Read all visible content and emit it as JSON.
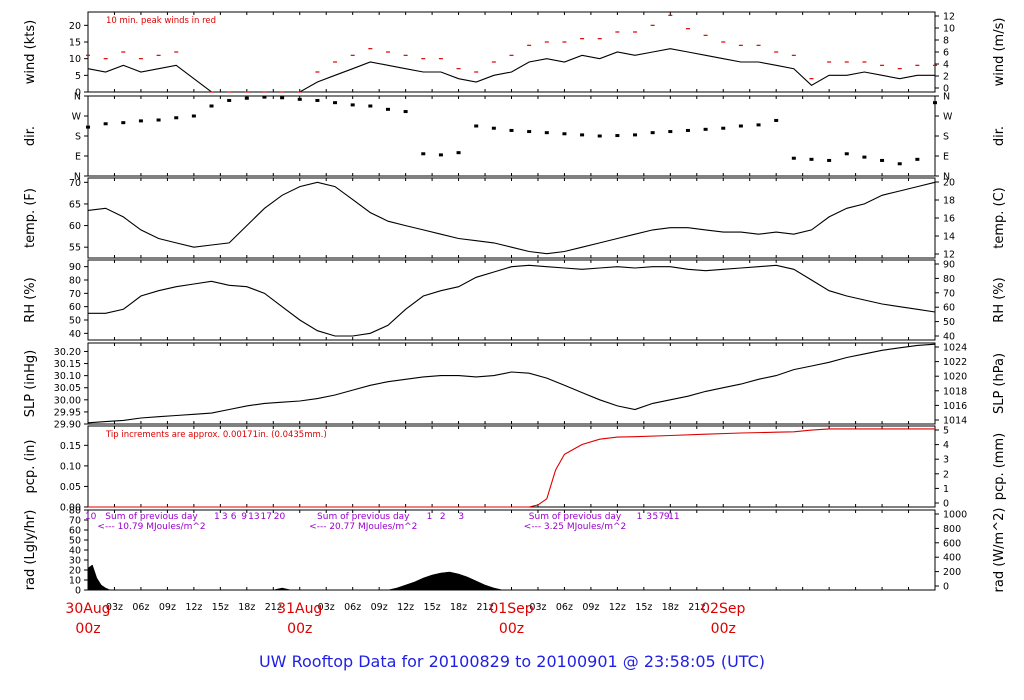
{
  "title": "UW Rooftop Data for 20100829  to  20100901 @ 23:58:05  (UTC)",
  "colors": {
    "data": "#000000",
    "accent": "#dd0000",
    "purple": "#9900cc",
    "title": "#1f1fe6",
    "frame": "#000000"
  },
  "x_axis": {
    "hour_ticks": [
      "03z",
      "06z",
      "09z",
      "12z",
      "15z",
      "18z",
      "21z",
      "00z",
      "03z",
      "06z",
      "09z",
      "12z",
      "15z",
      "18z",
      "21z",
      "00z",
      "03z",
      "06z",
      "09z",
      "12z",
      "15z",
      "18z",
      "21z",
      "00z"
    ],
    "day_labels": [
      {
        "date": "30Aug",
        "time": "00z"
      },
      {
        "date": "31Aug",
        "time": "00z"
      },
      {
        "date": "01Sep",
        "time": "00z"
      },
      {
        "date": "02Sep",
        "time": "00z"
      }
    ]
  },
  "chart_data": [
    {
      "type": "line",
      "ylabel": "wind (kts)",
      "ylabel_right": "wind (m/s)",
      "yticks": [
        "0",
        "5",
        "10",
        "15",
        "20"
      ],
      "yticks_right": [
        "0",
        "2",
        "4",
        "6",
        "8",
        "10",
        "12"
      ],
      "ylim": [
        0,
        24
      ],
      "annotation": "10 min. peak winds in red",
      "series": [
        {
          "role": "sustained",
          "x": [
            0,
            2,
            4,
            6,
            8,
            10,
            14,
            16,
            18,
            20,
            22,
            24,
            26,
            28,
            30,
            32,
            34,
            36,
            38,
            40,
            42,
            44,
            46,
            48,
            50,
            52,
            54,
            56,
            58,
            60,
            62,
            64,
            66,
            68,
            70,
            72,
            74,
            76,
            78,
            80,
            82,
            84,
            86,
            88,
            90,
            92,
            94,
            96
          ],
          "y": [
            7,
            6,
            8,
            6,
            7,
            8,
            0,
            0,
            0,
            0,
            0,
            0,
            3,
            5,
            7,
            9,
            8,
            7,
            6,
            6,
            4,
            3,
            5,
            6,
            9,
            10,
            9,
            11,
            10,
            12,
            11,
            12,
            13,
            12,
            11,
            10,
            9,
            9,
            8,
            7,
            2,
            5,
            5,
            6,
            5,
            4,
            5,
            5
          ]
        },
        {
          "role": "peak",
          "x": [
            0,
            2,
            4,
            6,
            8,
            10,
            14,
            16,
            18,
            20,
            22,
            24,
            26,
            28,
            30,
            32,
            34,
            36,
            38,
            40,
            42,
            44,
            46,
            48,
            50,
            52,
            54,
            56,
            58,
            60,
            62,
            64,
            66,
            68,
            70,
            72,
            74,
            76,
            78,
            80,
            82,
            84,
            86,
            88,
            90,
            92,
            94,
            96
          ],
          "y": [
            11,
            10,
            12,
            10,
            11,
            12,
            0,
            0,
            0,
            0,
            0,
            0,
            6,
            9,
            11,
            13,
            12,
            11,
            10,
            10,
            7,
            6,
            9,
            11,
            14,
            15,
            15,
            16,
            16,
            18,
            18,
            20,
            23,
            19,
            17,
            15,
            14,
            14,
            12,
            11,
            4,
            9,
            9,
            9,
            8,
            7,
            8,
            8
          ]
        }
      ]
    },
    {
      "type": "scatter",
      "ylabel": "dir.",
      "ylabel_right": "dir.",
      "yticks": [
        "N",
        "E",
        "S",
        "W",
        "N"
      ],
      "yticks_right": [
        "N",
        "E",
        "S",
        "W",
        "N"
      ],
      "ylim": [
        0,
        360
      ],
      "series": [
        {
          "x": [
            0,
            2,
            4,
            6,
            8,
            10,
            12,
            14,
            16,
            18,
            20,
            22,
            24,
            26,
            28,
            30,
            32,
            34,
            36,
            38,
            40,
            42,
            44,
            46,
            48,
            50,
            52,
            54,
            56,
            58,
            60,
            62,
            64,
            66,
            68,
            70,
            72,
            74,
            76,
            78,
            80,
            82,
            84,
            86,
            88,
            90,
            92,
            94,
            96
          ],
          "y": [
            220,
            235,
            240,
            248,
            252,
            262,
            270,
            315,
            340,
            350,
            355,
            352,
            345,
            340,
            330,
            320,
            315,
            300,
            290,
            100,
            95,
            105,
            225,
            215,
            205,
            200,
            195,
            190,
            185,
            180,
            182,
            185,
            195,
            200,
            205,
            210,
            215,
            225,
            230,
            250,
            80,
            75,
            70,
            100,
            85,
            70,
            55,
            75,
            330
          ]
        }
      ]
    },
    {
      "type": "line",
      "ylabel": "temp. (F)",
      "ylabel_right": "temp. (C)",
      "yticks": [
        "55",
        "60",
        "65",
        "70"
      ],
      "yticks_right": [
        "12",
        "14",
        "16",
        "18",
        "20"
      ],
      "ylim": [
        52.5,
        71
      ],
      "series": [
        {
          "x": [
            0,
            2,
            4,
            6,
            8,
            10,
            12,
            14,
            16,
            18,
            20,
            22,
            24,
            26,
            28,
            30,
            32,
            34,
            36,
            38,
            40,
            42,
            44,
            46,
            48,
            50,
            52,
            54,
            56,
            58,
            60,
            62,
            64,
            66,
            68,
            70,
            72,
            74,
            76,
            78,
            80,
            82,
            84,
            86,
            88,
            90,
            92,
            94,
            96
          ],
          "y": [
            63.5,
            64,
            62,
            59,
            57,
            56,
            55,
            55.5,
            56,
            60,
            64,
            67,
            69,
            70,
            69,
            66,
            63,
            61,
            60,
            59,
            58,
            57,
            56.5,
            56,
            55,
            54,
            53.5,
            54,
            55,
            56,
            57,
            58,
            59,
            59.5,
            59.5,
            59,
            58.5,
            58.5,
            58,
            58.5,
            58,
            59,
            62,
            64,
            65,
            67,
            68,
            69,
            70
          ]
        }
      ]
    },
    {
      "type": "line",
      "ylabel": "RH (%)",
      "ylabel_right": "RH (%)",
      "yticks": [
        "40",
        "50",
        "60",
        "70",
        "80",
        "90"
      ],
      "yticks_right": [
        "40",
        "50",
        "60",
        "70",
        "80",
        "90"
      ],
      "ylim": [
        35,
        95
      ],
      "series": [
        {
          "x": [
            0,
            2,
            4,
            6,
            8,
            10,
            12,
            14,
            16,
            18,
            20,
            22,
            24,
            26,
            28,
            30,
            32,
            34,
            36,
            38,
            40,
            42,
            44,
            46,
            48,
            50,
            52,
            54,
            56,
            58,
            60,
            62,
            64,
            66,
            68,
            70,
            72,
            74,
            76,
            78,
            80,
            82,
            84,
            86,
            88,
            90,
            92,
            94,
            96
          ],
          "y": [
            55,
            55,
            58,
            68,
            72,
            75,
            77,
            79,
            76,
            75,
            70,
            60,
            50,
            42,
            38,
            38,
            40,
            46,
            58,
            68,
            72,
            75,
            82,
            86,
            90,
            91,
            90,
            89,
            88,
            89,
            90,
            89,
            90,
            90,
            88,
            87,
            88,
            89,
            90,
            91,
            88,
            80,
            72,
            68,
            65,
            62,
            60,
            58,
            56
          ]
        }
      ]
    },
    {
      "type": "line",
      "ylabel": "SLP (inHg)",
      "ylabel_right": "SLP (hPa)",
      "yticks": [
        "29.90",
        "29.95",
        "30.00",
        "30.05",
        "30.10",
        "30.15",
        "30.20"
      ],
      "yticks_right": [
        "1014",
        "1016",
        "1018",
        "1020",
        "1022",
        "1024"
      ],
      "ylim": [
        29.9,
        30.235
      ],
      "series": [
        {
          "x": [
            0,
            2,
            4,
            6,
            8,
            10,
            12,
            14,
            16,
            18,
            20,
            22,
            24,
            26,
            28,
            30,
            32,
            34,
            36,
            38,
            40,
            42,
            44,
            46,
            48,
            50,
            52,
            54,
            56,
            58,
            60,
            62,
            64,
            66,
            68,
            70,
            72,
            74,
            76,
            78,
            80,
            82,
            84,
            86,
            88,
            90,
            92,
            94,
            96
          ],
          "y": [
            29.905,
            29.91,
            29.915,
            29.925,
            29.93,
            29.935,
            29.94,
            29.945,
            29.96,
            29.975,
            29.985,
            29.99,
            29.995,
            30.005,
            30.02,
            30.04,
            30.06,
            30.075,
            30.085,
            30.095,
            30.1,
            30.1,
            30.095,
            30.1,
            30.115,
            30.11,
            30.09,
            30.06,
            30.03,
            30.0,
            29.975,
            29.96,
            29.985,
            30.0,
            30.015,
            30.035,
            30.05,
            30.065,
            30.085,
            30.1,
            30.125,
            30.14,
            30.155,
            30.175,
            30.19,
            30.205,
            30.215,
            30.225,
            30.23
          ]
        }
      ]
    },
    {
      "type": "line",
      "ylabel": "pcp. (in)",
      "ylabel_right": "pcp. (mm)",
      "yticks": [
        "0.00",
        "0.05",
        "0.10",
        "0.15"
      ],
      "yticks_right": [
        "0",
        "1",
        "2",
        "3",
        "4",
        "5"
      ],
      "ylim": [
        0,
        0.197
      ],
      "annotation": "Tip increments are approx. 0.00171in. (0.0435mm.)",
      "series": [
        {
          "x": [
            0,
            50,
            51,
            52,
            53,
            54,
            55,
            56,
            58,
            60,
            62,
            66,
            70,
            74,
            78,
            80,
            82,
            84,
            86,
            88,
            90,
            92,
            94,
            96
          ],
          "y": [
            0,
            0,
            0.005,
            0.02,
            0.09,
            0.128,
            0.14,
            0.152,
            0.165,
            0.17,
            0.171,
            0.174,
            0.177,
            0.18,
            0.182,
            0.183,
            0.187,
            0.19,
            0.19,
            0.19,
            0.19,
            0.19,
            0.19,
            0.19
          ]
        }
      ]
    },
    {
      "type": "area",
      "ylabel": "rad (Lgly/hr)",
      "ylabel_right": "rad (W/m^2)",
      "yticks": [
        "0",
        "10",
        "20",
        "30",
        "40",
        "50",
        "60",
        "70",
        "80"
      ],
      "yticks_right": [
        "0",
        "200",
        "400",
        "600",
        "800",
        "1000"
      ],
      "ylim": [
        0,
        80
      ],
      "hour_labels": [
        {
          "text": "10",
          "x": 0.3
        },
        {
          "text": "1",
          "x": 14.6
        },
        {
          "text": "3",
          "x": 15.5
        },
        {
          "text": "6",
          "x": 16.5
        },
        {
          "text": "9",
          "x": 17.7
        },
        {
          "text": "13",
          "x": 18.8
        },
        {
          "text": "17",
          "x": 20.2
        },
        {
          "text": "20",
          "x": 21.7
        },
        {
          "text": "1",
          "x": 38.7
        },
        {
          "text": "2",
          "x": 40.2
        },
        {
          "text": "3",
          "x": 42.3
        },
        {
          "text": "1",
          "x": 62.5
        },
        {
          "text": "3",
          "x": 63.6
        },
        {
          "text": "5",
          "x": 64.3
        },
        {
          "text": "7",
          "x": 65.0
        },
        {
          "text": "9",
          "x": 65.6
        },
        {
          "text": "11",
          "x": 66.4
        }
      ],
      "day_totals": [
        {
          "text": "Sum of previous day",
          "detail": "<--- 10.79 MJoules/m^2",
          "x": 7.2
        },
        {
          "text": "Sum of previous day",
          "detail": "<--- 20.77 MJoules/m^2",
          "x": 31.2
        },
        {
          "text": "Sum of previous day",
          "detail": "<--- 3.25 MJoules/m^2",
          "x": 55.2
        }
      ],
      "series": [
        {
          "x": [
            0,
            0.5,
            1,
            1.5,
            2,
            2.5,
            3,
            4,
            5,
            6,
            7,
            8,
            9,
            10,
            11,
            12,
            13,
            14,
            15,
            16,
            17,
            18,
            19,
            20,
            21,
            22,
            23,
            24,
            25,
            26,
            27,
            28,
            29,
            30,
            31,
            32,
            33,
            34,
            35,
            36,
            37,
            38,
            39,
            40,
            41,
            42,
            43,
            44,
            45,
            46,
            47,
            48,
            49,
            50,
            51,
            52,
            53,
            54,
            55,
            56,
            57,
            58,
            59,
            60,
            61,
            62,
            63,
            64,
            65,
            66,
            67,
            68,
            69,
            70,
            71,
            72
          ],
          "y": [
            22,
            25,
            12,
            5,
            2,
            0,
            0,
            0,
            0,
            0,
            0,
            0,
            0,
            0,
            0,
            0,
            0,
            0,
            0,
            0,
            0,
            0,
            0,
            0,
            0,
            2,
            0,
            0,
            0,
            0,
            0,
            0,
            0,
            0,
            0,
            0,
            0,
            0,
            2,
            5,
            8,
            12,
            15,
            17,
            18,
            16,
            13,
            9,
            5,
            2,
            0,
            0,
            0,
            0,
            0,
            0,
            0,
            0,
            0,
            0,
            0,
            0,
            0,
            0,
            0,
            0,
            0,
            0,
            0,
            0,
            0,
            0,
            0,
            0,
            0,
            0
          ]
        }
      ]
    }
  ]
}
